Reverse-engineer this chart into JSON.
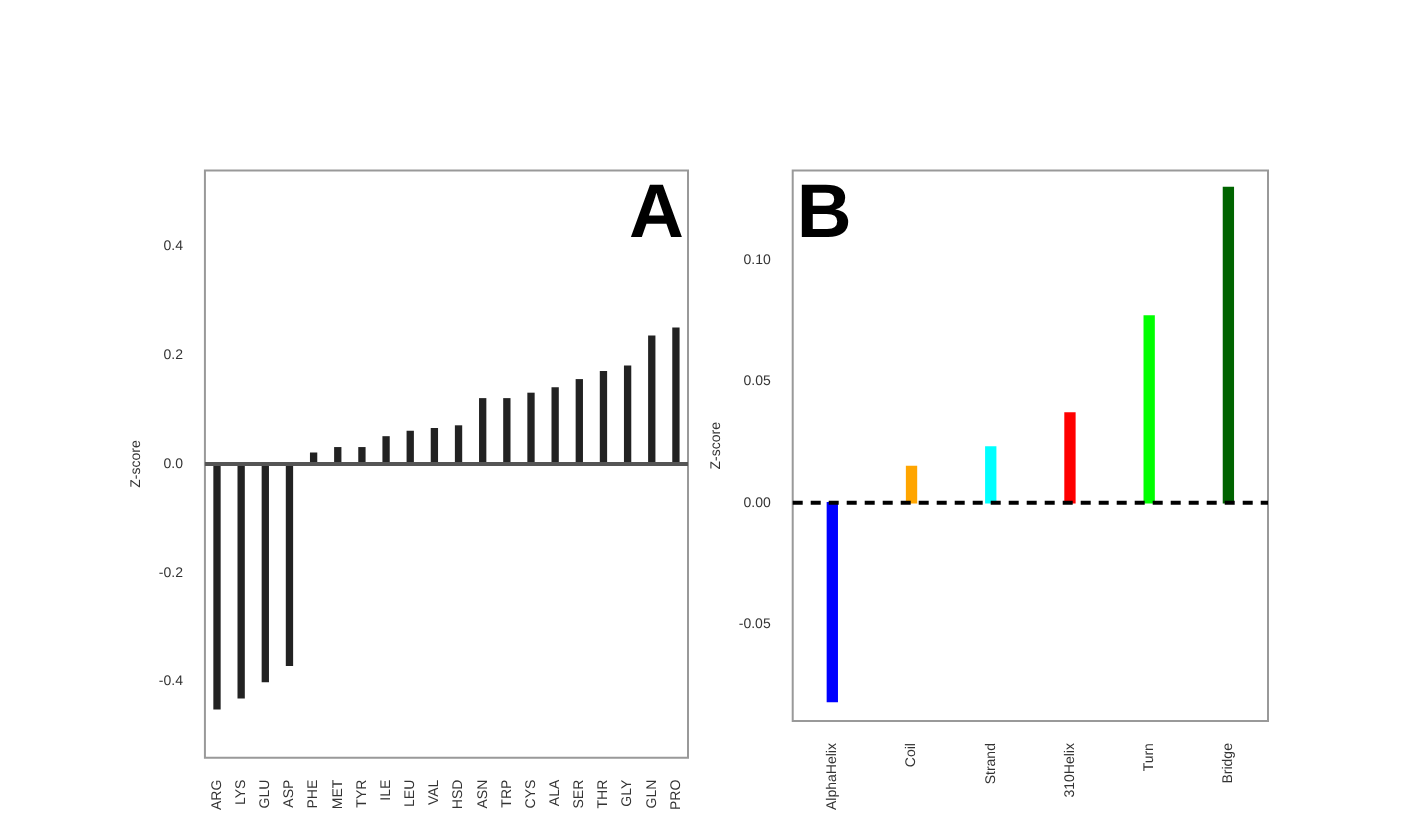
{
  "chart_data": [
    {
      "type": "bar",
      "ylabel": "Z-score",
      "annotations": [
        "A"
      ],
      "categories": [
        "ARG",
        "LYS",
        "GLU",
        "ASP",
        "PHE",
        "MET",
        "TYR",
        "ILE",
        "LEU",
        "VAL",
        "HSD",
        "ASN",
        "TRP",
        "CYS",
        "ALA",
        "SER",
        "THR",
        "GLY",
        "GLN",
        "PRO"
      ],
      "values": [
        -0.45,
        -0.43,
        -0.4,
        -0.37,
        0.02,
        0.03,
        0.03,
        0.05,
        0.06,
        0.065,
        0.07,
        0.12,
        0.12,
        0.13,
        0.14,
        0.155,
        0.17,
        0.18,
        0.235,
        0.25
      ],
      "color": "#222222",
      "ylim": [
        -0.54,
        0.54
      ],
      "yticks": [
        {
          "value": -0.4,
          "label": "-0.4"
        },
        {
          "value": -0.2,
          "label": "-0.2"
        },
        {
          "value": 0,
          "label": "0.0"
        },
        {
          "value": 0.2,
          "label": "0.2"
        },
        {
          "value": 0.4,
          "label": "0.4"
        }
      ],
      "ref_lines": [
        {
          "axis": "y",
          "value": 0,
          "color": "#555555",
          "line_style": "solid"
        }
      ],
      "grid": false,
      "legend": false
    },
    {
      "type": "bar",
      "ylabel": "Z-score",
      "annotations": [
        "B"
      ],
      "categories": [
        "AlphaHelix",
        "Coil",
        "Strand",
        "310Helix",
        "Turn",
        "Bridge"
      ],
      "values": [
        -0.082,
        0.015,
        0.023,
        0.037,
        0.077,
        0.13
      ],
      "colors": [
        "#0000ff",
        "#ffa500",
        "#00ffff",
        "#ff0000",
        "#00ff00",
        "#006400"
      ],
      "ylim": [
        -0.09,
        0.137
      ],
      "yticks": [
        {
          "value": -0.05,
          "label": "-0.05"
        },
        {
          "value": 0,
          "label": "0.00"
        },
        {
          "value": 0.05,
          "label": "0.05"
        },
        {
          "value": 0.1,
          "label": "0.10"
        }
      ],
      "ref_lines": [
        {
          "axis": "y",
          "value": 0,
          "color": "#000000",
          "line_style": "dashed"
        }
      ],
      "grid": false,
      "legend": false
    }
  ]
}
